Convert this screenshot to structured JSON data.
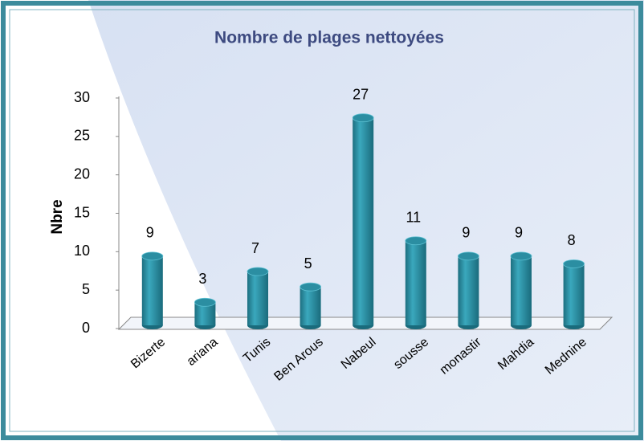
{
  "chart_data": {
    "type": "bar",
    "title": "Nombre de plages nettoyées",
    "y_label": "Nbre",
    "categories": [
      "Bizerte",
      "ariana",
      "Tunis",
      "Ben Arous",
      "Nabeul",
      "sousse",
      "monastir",
      "Mahdia",
      "Mednine"
    ],
    "values": [
      9,
      3,
      7,
      5,
      27,
      11,
      9,
      9,
      8
    ],
    "color": "#2b8ea2",
    "ylim": [
      0,
      30
    ],
    "yticks": [
      0,
      5,
      10,
      15,
      20,
      25,
      30
    ]
  }
}
